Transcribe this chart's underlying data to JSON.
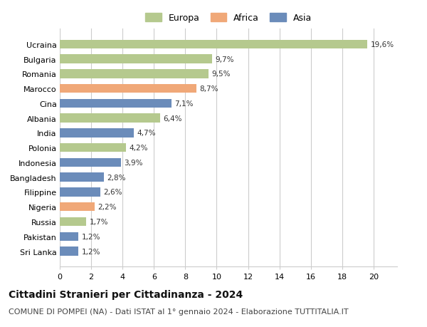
{
  "categories": [
    "Sri Lanka",
    "Pakistan",
    "Russia",
    "Nigeria",
    "Filippine",
    "Bangladesh",
    "Indonesia",
    "Polonia",
    "India",
    "Albania",
    "Cina",
    "Marocco",
    "Romania",
    "Bulgaria",
    "Ucraina"
  ],
  "values": [
    1.2,
    1.2,
    1.7,
    2.2,
    2.6,
    2.8,
    3.9,
    4.2,
    4.7,
    6.4,
    7.1,
    8.7,
    9.5,
    9.7,
    19.6
  ],
  "labels": [
    "1,2%",
    "1,2%",
    "1,7%",
    "2,2%",
    "2,6%",
    "2,8%",
    "3,9%",
    "4,2%",
    "4,7%",
    "6,4%",
    "7,1%",
    "8,7%",
    "9,5%",
    "9,7%",
    "19,6%"
  ],
  "continents": [
    "Asia",
    "Asia",
    "Europa",
    "Africa",
    "Asia",
    "Asia",
    "Asia",
    "Europa",
    "Asia",
    "Europa",
    "Asia",
    "Africa",
    "Europa",
    "Europa",
    "Europa"
  ],
  "colors": {
    "Europa": "#b5c98e",
    "Africa": "#f0a878",
    "Asia": "#6b8cba"
  },
  "legend_labels": [
    "Europa",
    "Africa",
    "Asia"
  ],
  "xlim": [
    0,
    21.5
  ],
  "xticks": [
    0,
    2,
    4,
    6,
    8,
    10,
    12,
    14,
    16,
    18,
    20
  ],
  "title": "Cittadini Stranieri per Cittadinanza - 2024",
  "subtitle": "COMUNE DI POMPEI (NA) - Dati ISTAT al 1° gennaio 2024 - Elaborazione TUTTITALIA.IT",
  "title_fontsize": 10,
  "subtitle_fontsize": 8,
  "bar_height": 0.6,
  "background_color": "#ffffff",
  "grid_color": "#cccccc"
}
